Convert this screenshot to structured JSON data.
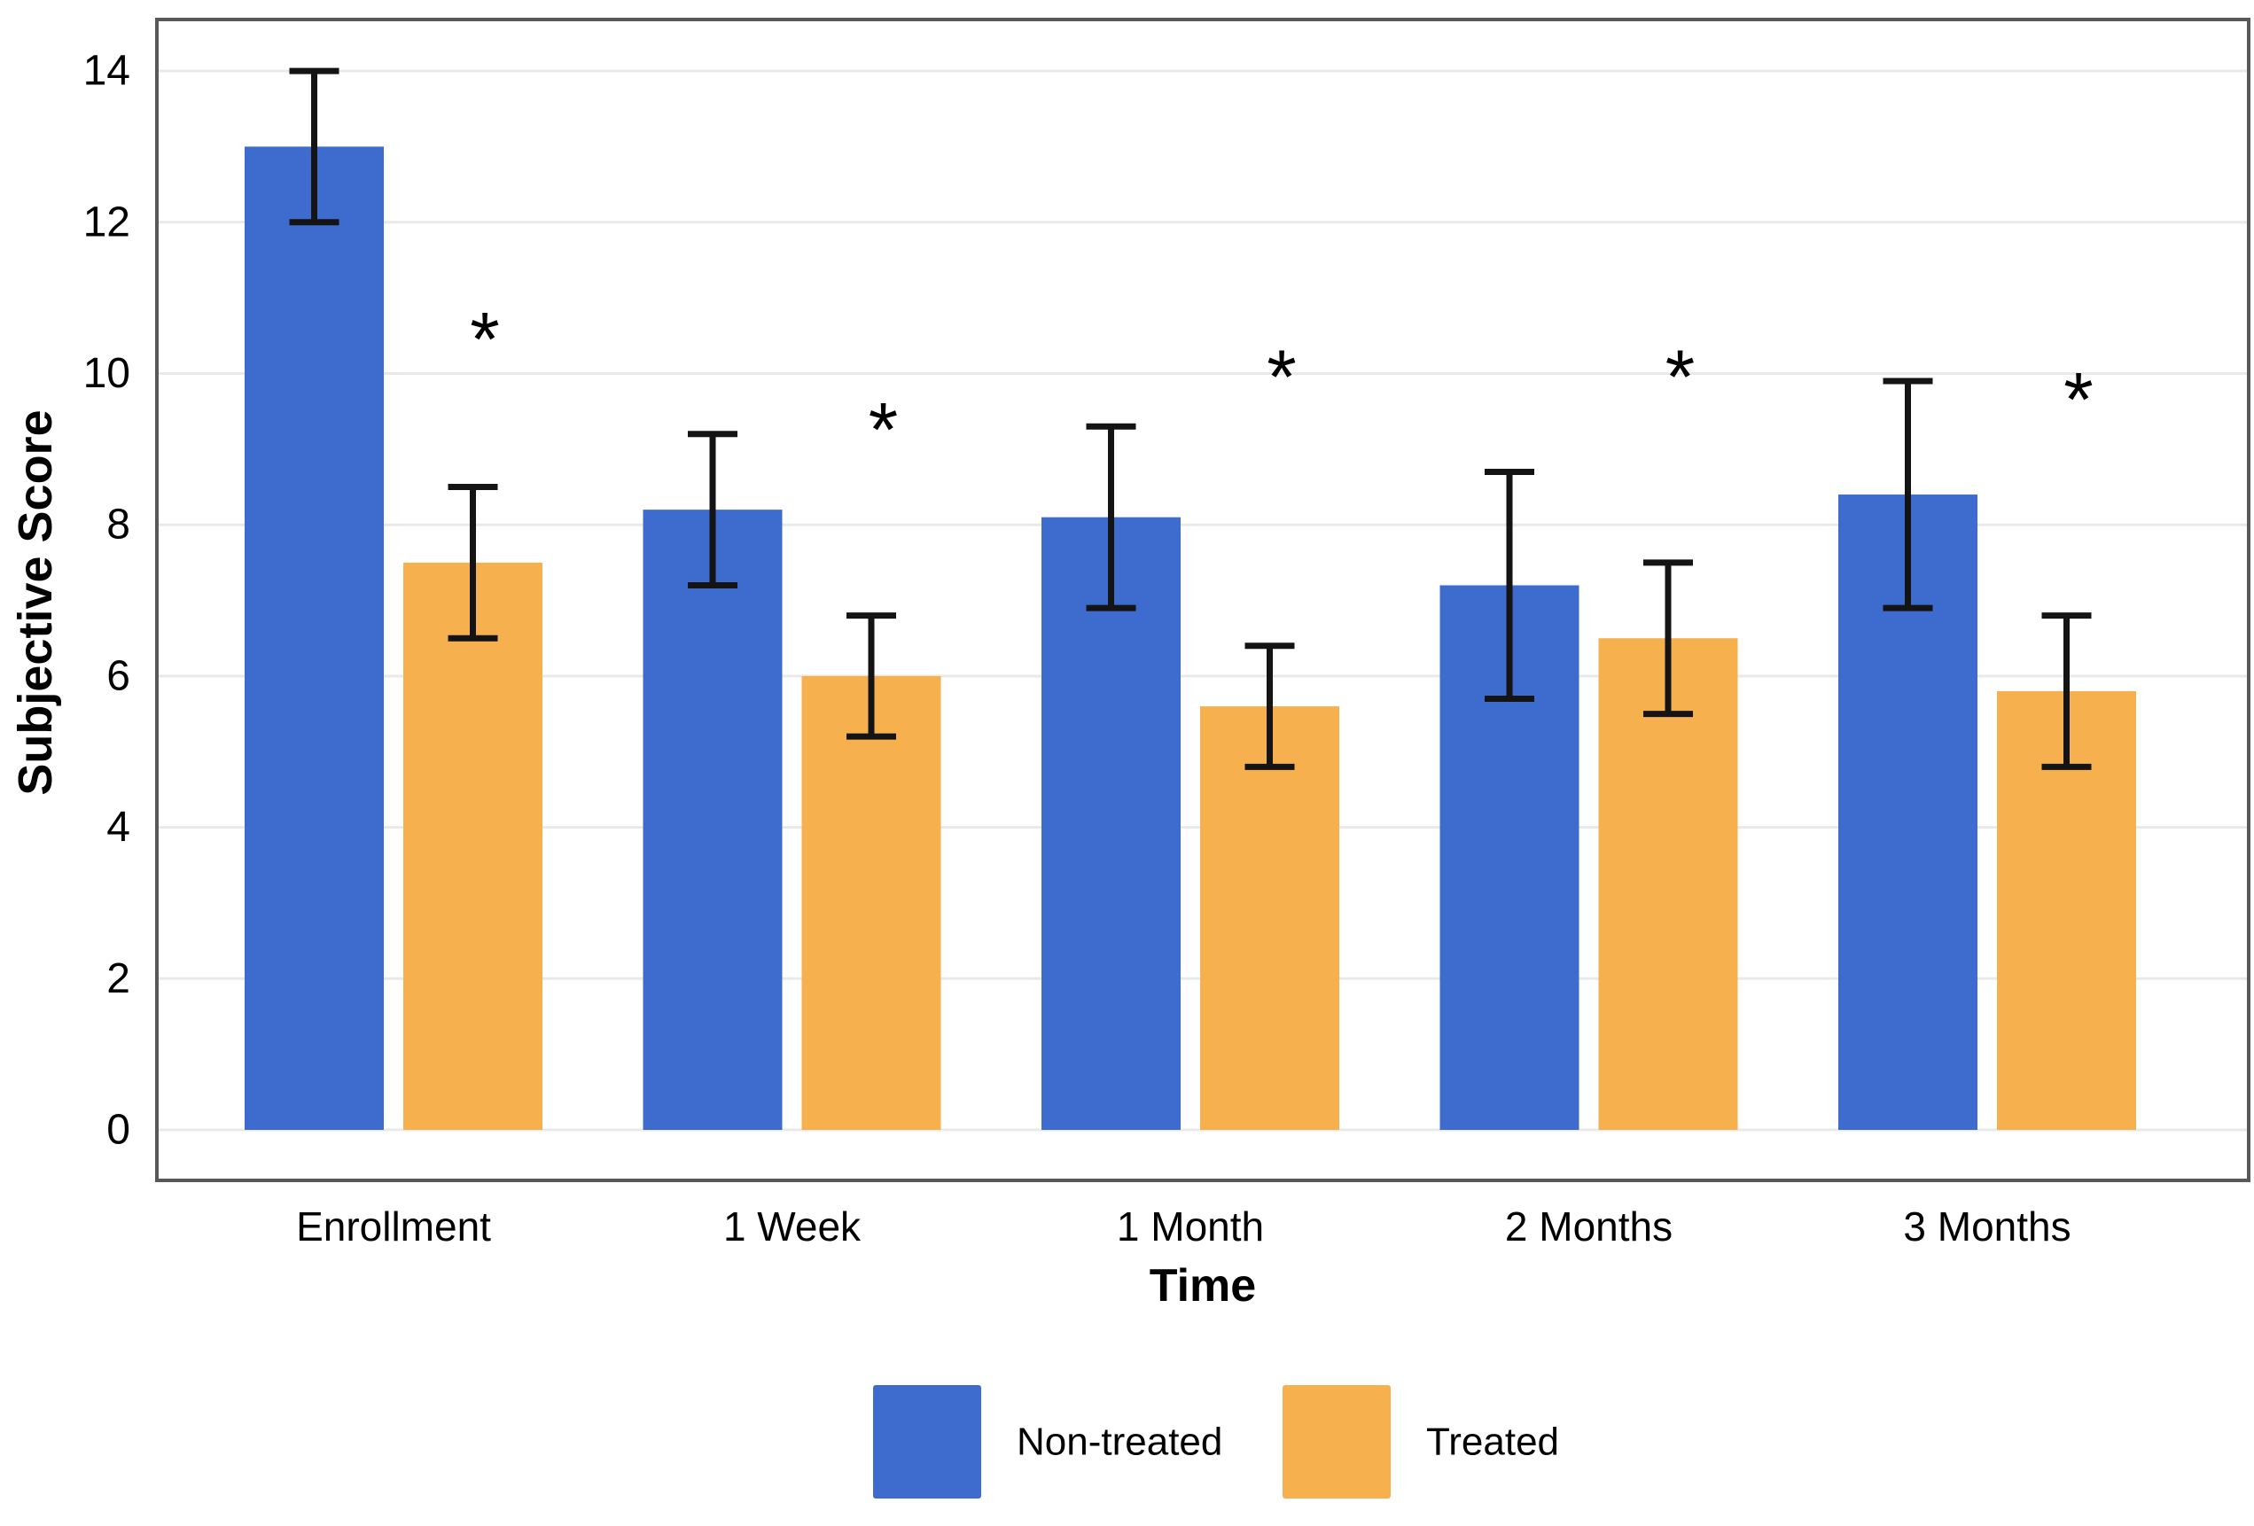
{
  "figure": {
    "background": "#ffffff",
    "title": ""
  },
  "chart_data": {
    "type": "bar",
    "title": "",
    "xlabel": "Time",
    "ylabel": "Subjective Score",
    "categories": [
      "Enrollment",
      "1 Week",
      "1 Month",
      "2 Months",
      "3 Months"
    ],
    "series": [
      {
        "name": "Non-treated",
        "color": "#3D6CCE",
        "values": [
          13.0,
          8.2,
          8.1,
          7.2,
          8.4
        ],
        "error_low": [
          12.0,
          7.2,
          6.9,
          5.7,
          6.9
        ],
        "error_high": [
          14.0,
          9.2,
          9.3,
          8.7,
          9.9
        ]
      },
      {
        "name": "Treated",
        "color": "#F6B04E",
        "values": [
          7.5,
          6.0,
          5.6,
          6.5,
          5.8
        ],
        "error_low": [
          6.5,
          5.2,
          4.8,
          5.5,
          4.8
        ],
        "error_high": [
          8.5,
          6.8,
          6.4,
          7.5,
          6.8
        ],
        "significance": [
          "*",
          "*",
          "*",
          "*",
          "*"
        ],
        "significance_y": [
          10.6,
          9.4,
          10.1,
          10.1,
          9.8
        ]
      }
    ],
    "significance_marker": "*",
    "y_ticks": [
      0,
      2,
      4,
      6,
      8,
      10,
      12,
      14
    ],
    "ylim": [
      0,
      14
    ],
    "grid": "horizontal",
    "legend_position": "bottom"
  },
  "style": {
    "gridline_color": "#E9E9E9",
    "frame_color": "#58585A",
    "errorbar_color": "#141414",
    "text_color": "#000000"
  }
}
